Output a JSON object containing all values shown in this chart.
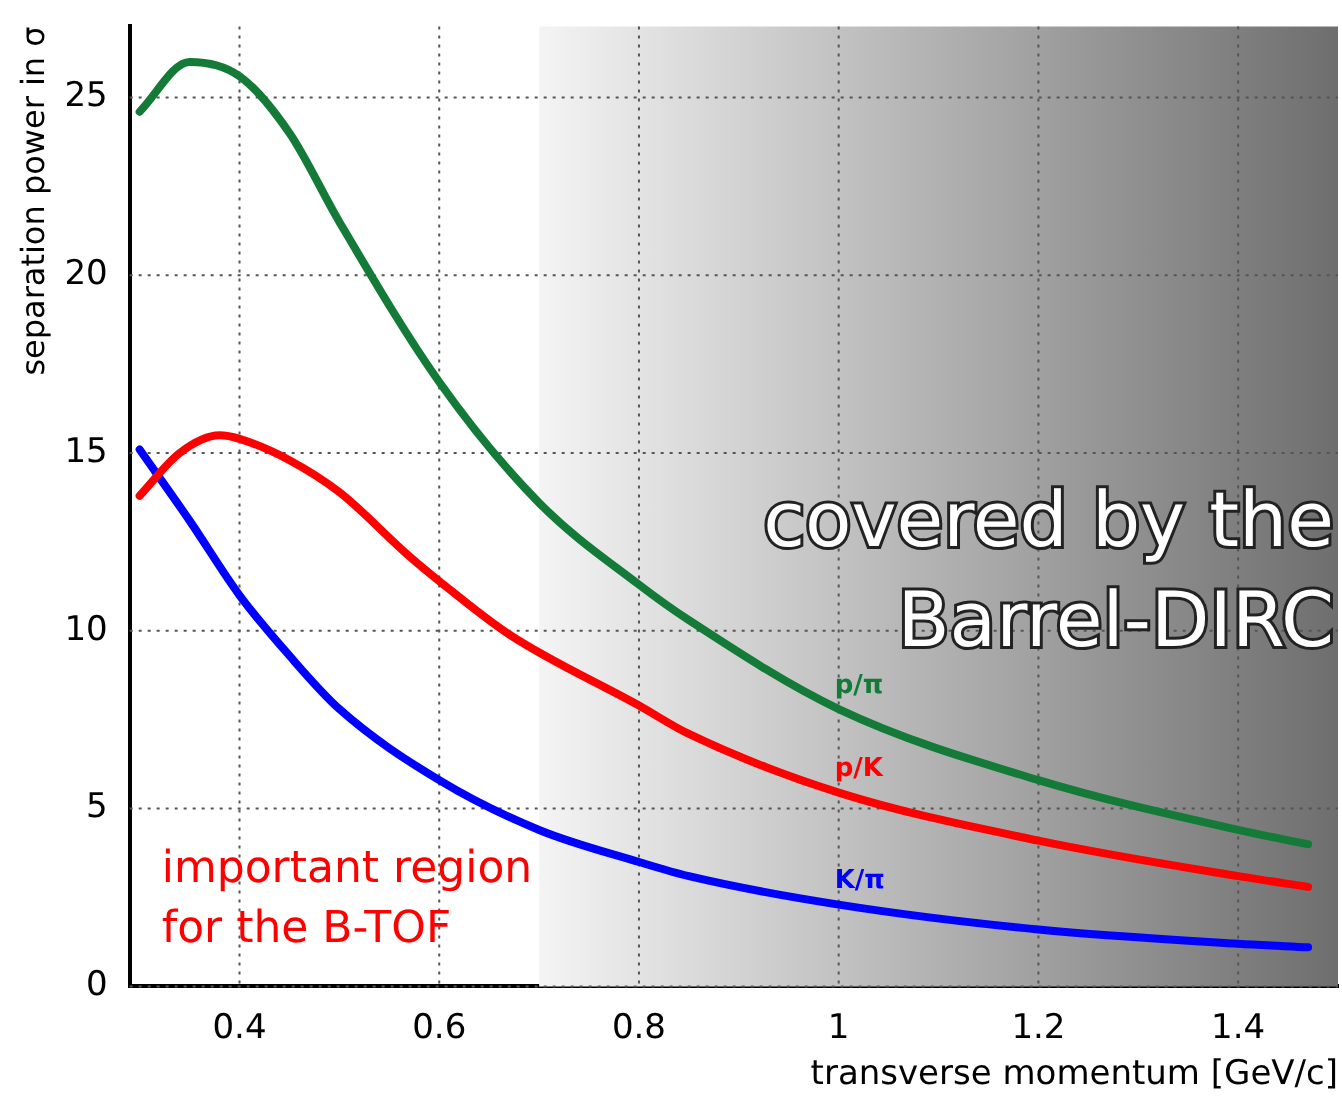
{
  "chart_data": {
    "type": "line",
    "xlabel": "transverse momentum [GeV/c]",
    "ylabel": "separation power in σ",
    "xlim": [
      0.29,
      1.5
    ],
    "xticks": [
      0.4,
      0.6,
      0.8,
      1,
      1.2,
      1.4
    ],
    "ylim": [
      0,
      27
    ],
    "yticks": [
      0,
      5,
      10,
      15,
      20,
      25
    ],
    "grid": true,
    "legend": false,
    "marker": "none",
    "line_style": "solid",
    "series": [
      {
        "name": "p/π",
        "color": "#137a37",
        "x": [
          0.3,
          0.35,
          0.4,
          0.45,
          0.5,
          0.6,
          0.7,
          0.8,
          0.85,
          1.0,
          1.2,
          1.4,
          1.47
        ],
        "values": [
          24.6,
          26.0,
          25.6,
          24.0,
          21.5,
          17.0,
          13.6,
          11.3,
          10.3,
          7.8,
          5.8,
          4.4,
          4.0
        ]
      },
      {
        "name": "p/K",
        "color": "#ff0000",
        "x": [
          0.3,
          0.34,
          0.38,
          0.4,
          0.45,
          0.5,
          0.57,
          0.6,
          0.67,
          0.8,
          0.85,
          1.0,
          1.2,
          1.4,
          1.47
        ],
        "values": [
          13.8,
          15.0,
          15.5,
          15.4,
          14.8,
          13.9,
          12.1,
          11.4,
          9.9,
          7.9,
          7.1,
          5.45,
          4.1,
          3.1,
          2.8
        ]
      },
      {
        "name": "K/π",
        "color": "#0000ff",
        "x": [
          0.3,
          0.35,
          0.4,
          0.45,
          0.5,
          0.6,
          0.7,
          0.8,
          0.85,
          1.0,
          1.2,
          1.4,
          1.47
        ],
        "values": [
          15.1,
          13.1,
          11.0,
          9.3,
          7.8,
          5.8,
          4.4,
          3.5,
          3.1,
          2.3,
          1.6,
          1.2,
          1.1
        ]
      }
    ],
    "bands": [
      {
        "axis": "x",
        "from": 0.7,
        "to": 1.5,
        "label": "covered by the Barrel-DIRC",
        "color": "#6e6e6e"
      }
    ],
    "annotations": [
      "important region for the B-TOF"
    ]
  }
}
